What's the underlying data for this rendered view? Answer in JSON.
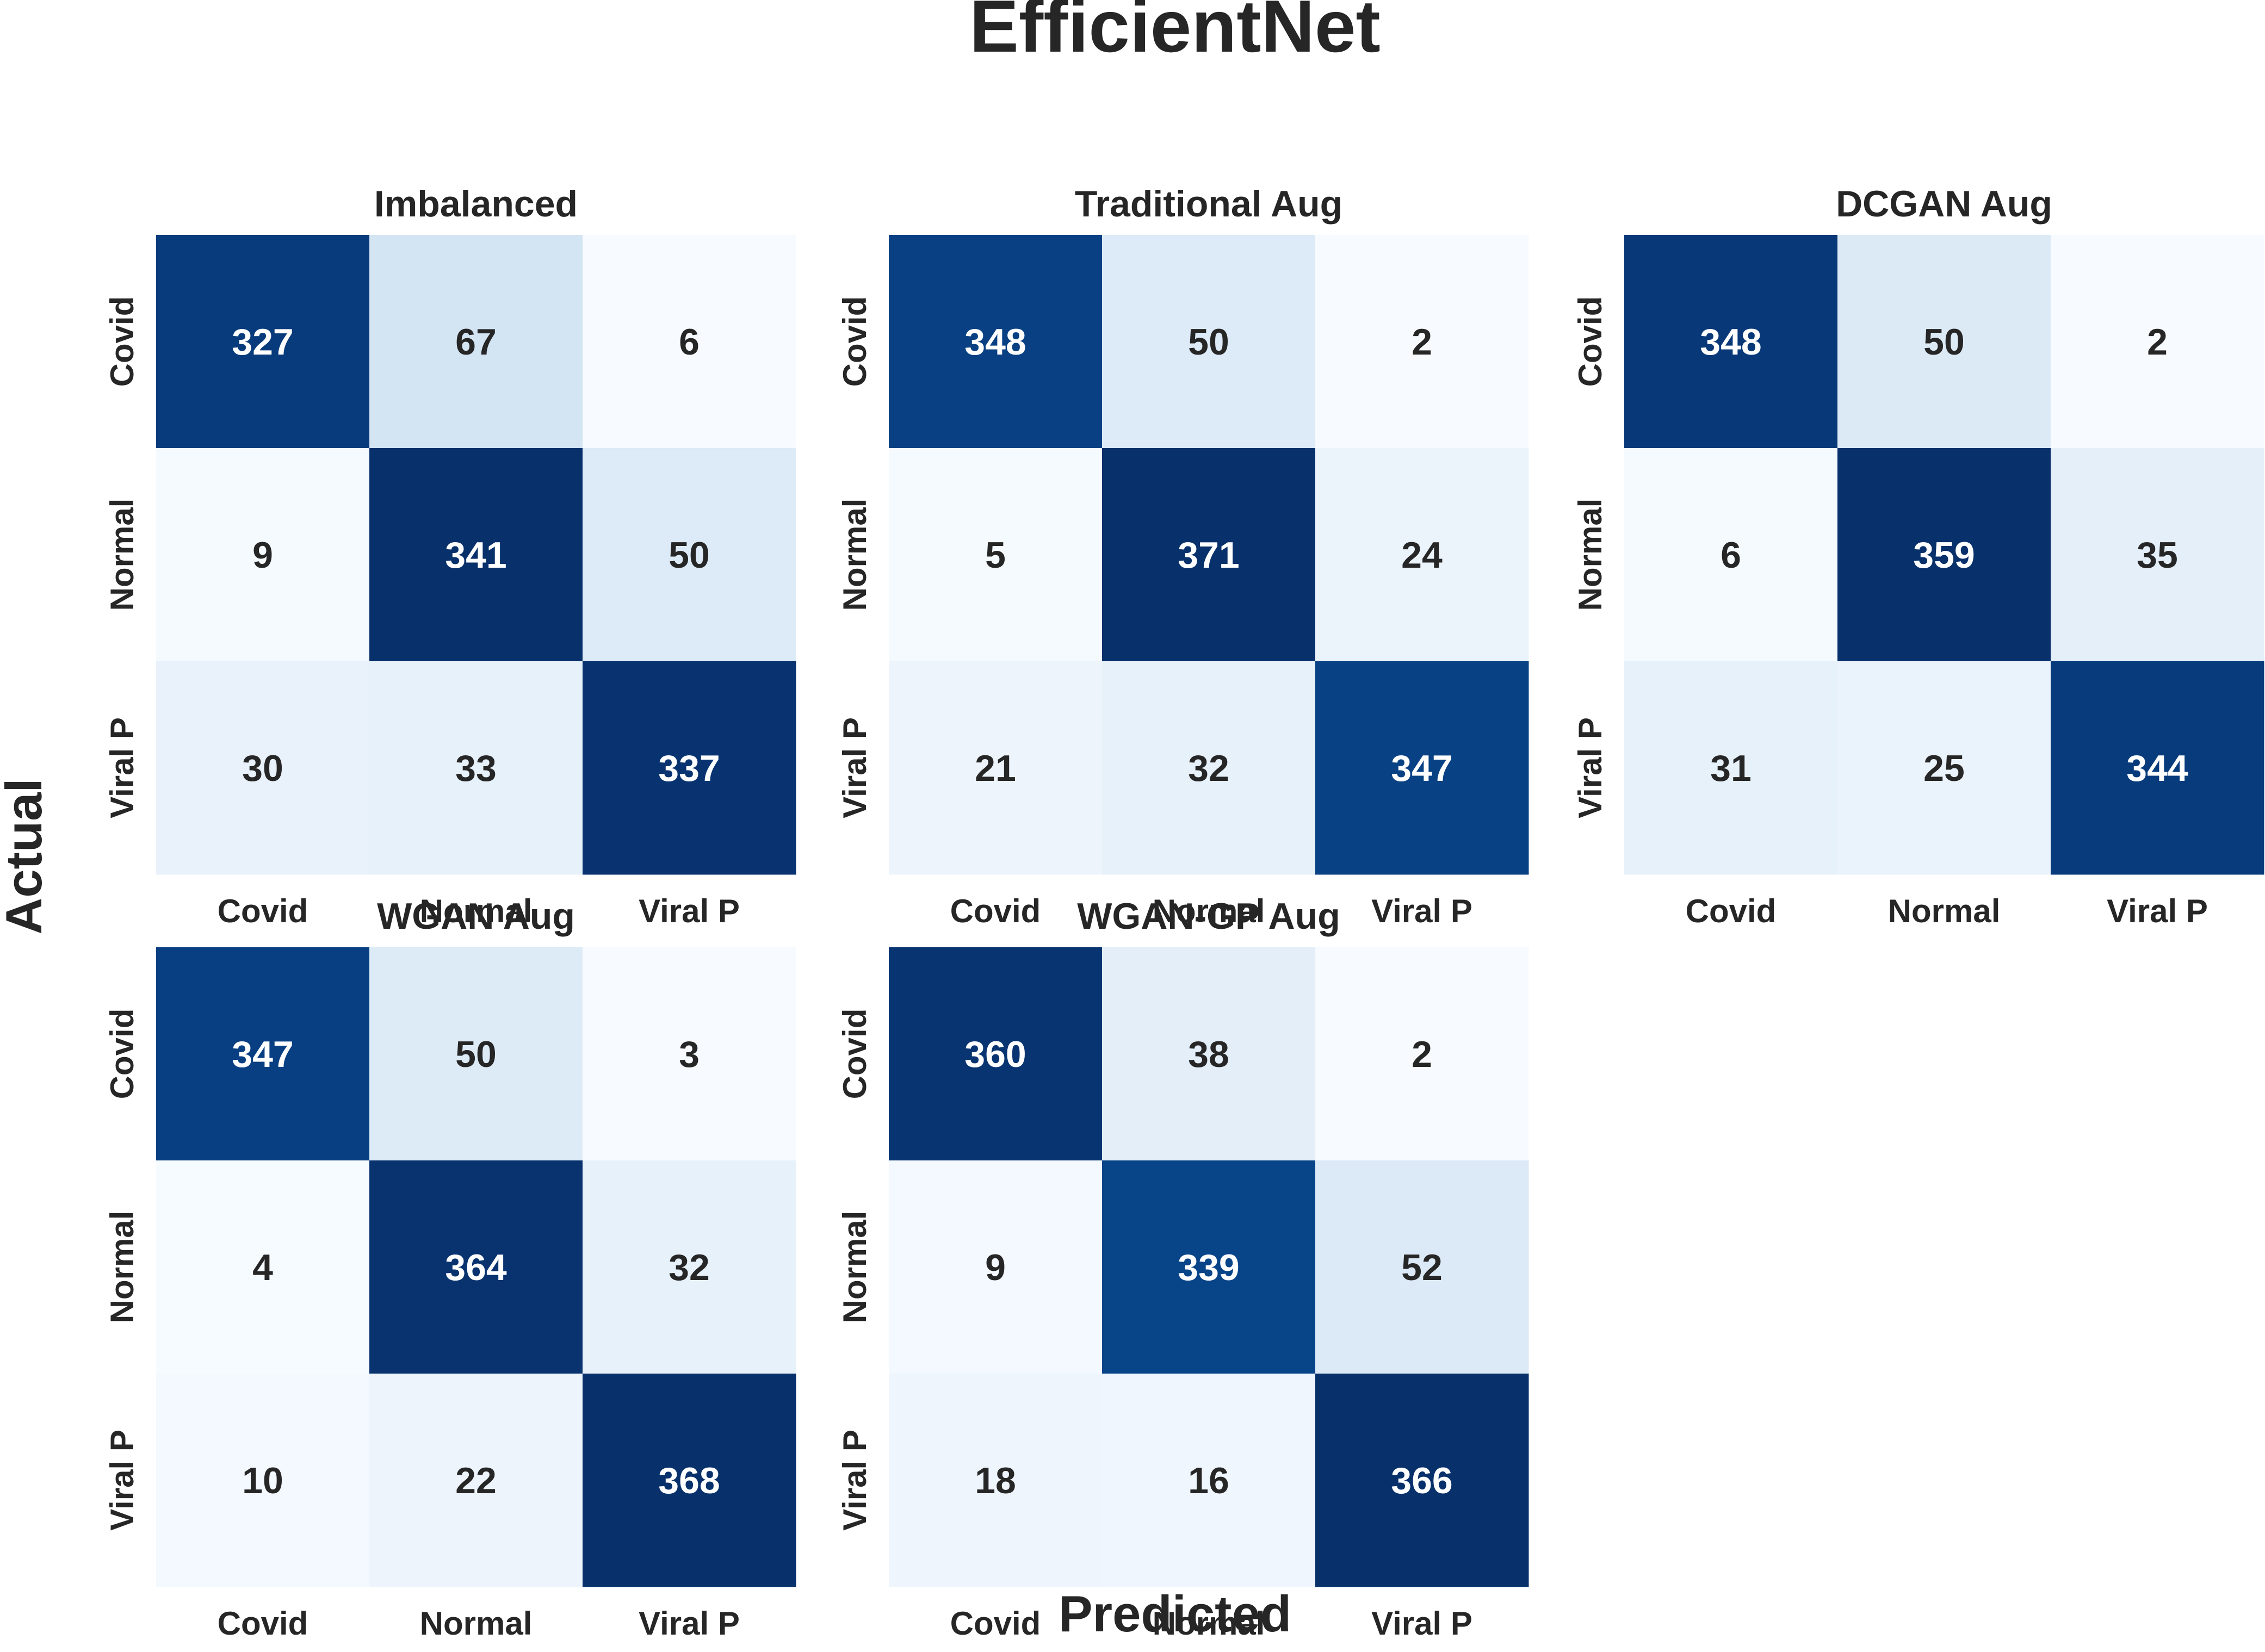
{
  "figure": {
    "title": "EfficientNet",
    "xlabel": "Predicted",
    "ylabel": "Actual"
  },
  "chart_data": [
    {
      "type": "heatmap",
      "title": "Imbalanced",
      "x_categories": [
        "Covid",
        "Normal",
        "Viral P"
      ],
      "y_categories": [
        "Covid",
        "Normal",
        "Viral P"
      ],
      "matrix": [
        [
          327,
          67,
          6
        ],
        [
          9,
          341,
          50
        ],
        [
          30,
          33,
          337
        ]
      ]
    },
    {
      "type": "heatmap",
      "title": "Traditional Aug",
      "x_categories": [
        "Covid",
        "Normal",
        "Viral P"
      ],
      "y_categories": [
        "Covid",
        "Normal",
        "Viral P"
      ],
      "matrix": [
        [
          348,
          50,
          2
        ],
        [
          5,
          371,
          24
        ],
        [
          21,
          32,
          347
        ]
      ]
    },
    {
      "type": "heatmap",
      "title": "DCGAN Aug",
      "x_categories": [
        "Covid",
        "Normal",
        "Viral P"
      ],
      "y_categories": [
        "Covid",
        "Normal",
        "Viral P"
      ],
      "matrix": [
        [
          348,
          50,
          2
        ],
        [
          6,
          359,
          35
        ],
        [
          31,
          25,
          344
        ]
      ]
    },
    {
      "type": "heatmap",
      "title": "WGAN Aug",
      "x_categories": [
        "Covid",
        "Normal",
        "Viral P"
      ],
      "y_categories": [
        "Covid",
        "Normal",
        "Viral P"
      ],
      "matrix": [
        [
          347,
          50,
          3
        ],
        [
          4,
          364,
          32
        ],
        [
          10,
          22,
          368
        ]
      ]
    },
    {
      "type": "heatmap",
      "title": "WGAN-GP Aug",
      "x_categories": [
        "Covid",
        "Normal",
        "Viral P"
      ],
      "y_categories": [
        "Covid",
        "Normal",
        "Viral P"
      ],
      "matrix": [
        [
          360,
          38,
          2
        ],
        [
          9,
          339,
          52
        ],
        [
          18,
          16,
          366
        ]
      ]
    }
  ],
  "colors": {
    "colormap": "Blues",
    "text_dark": "#262626",
    "text_light": "#ffffff"
  }
}
